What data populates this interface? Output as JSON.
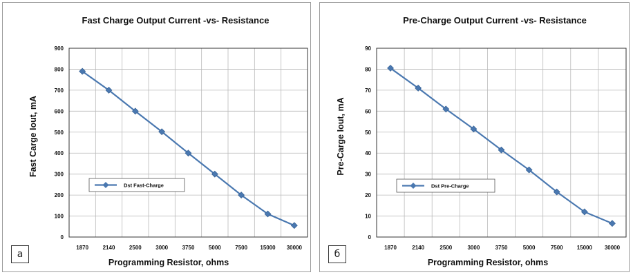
{
  "chart_data": [
    {
      "type": "line",
      "panel_label": "a",
      "title": "Fast Charge Output Current -vs- Resistance",
      "xlabel": "Programming Resistor, ohms",
      "ylabel": "Fast Carge Iout, mA",
      "categories": [
        "1870",
        "2140",
        "2500",
        "3000",
        "3750",
        "5000",
        "7500",
        "15000",
        "30000"
      ],
      "series": [
        {
          "name": "Dst Fast-Charge",
          "values": [
            790,
            700,
            600,
            502,
            400,
            300,
            200,
            110,
            55
          ],
          "color": "#4a78b0"
        }
      ],
      "ylim": [
        0,
        900
      ],
      "yticks": [
        0,
        100,
        200,
        300,
        400,
        500,
        600,
        700,
        800,
        900
      ],
      "grid": true,
      "legend_position": "lower-left"
    },
    {
      "type": "line",
      "panel_label": "б",
      "title": "Pre-Charge Output Current -vs- Resistance",
      "xlabel": "Programming Resistor, ohms",
      "ylabel": "Pre-Carge Iout, mA",
      "categories": [
        "1870",
        "2140",
        "2500",
        "3000",
        "3750",
        "5000",
        "7500",
        "15000",
        "30000"
      ],
      "series": [
        {
          "name": "Dst Pre-Charge",
          "values": [
            80.5,
            71,
            61,
            51.5,
            41.5,
            32,
            21.5,
            12,
            6.5
          ],
          "color": "#4a78b0"
        }
      ],
      "ylim": [
        0,
        90
      ],
      "yticks": [
        0,
        10,
        20,
        30,
        40,
        50,
        60,
        70,
        80,
        90
      ],
      "grid": true,
      "legend_position": "lower-left"
    }
  ]
}
